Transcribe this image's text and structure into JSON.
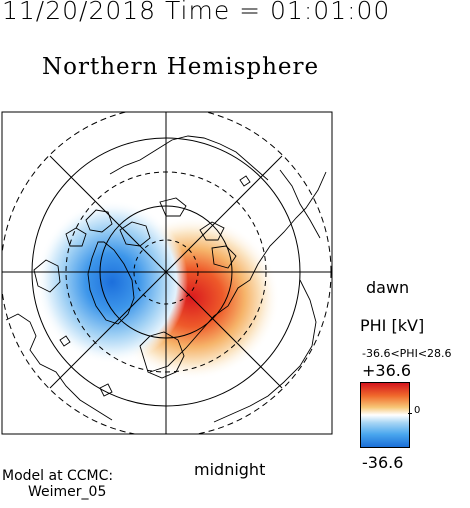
{
  "header": {
    "timestamp": "11/20/2018 Time = 01:01:00",
    "title": "Northern Hemisphere"
  },
  "map": {
    "labels": {
      "dawn": "dawn",
      "midnight": "midnight"
    }
  },
  "colorbar": {
    "label": "PHI [kV]",
    "range_text": "-36.6<PHI<28.6",
    "max_text": "+36.6",
    "min_text": "-36.6",
    "zero_text": "0",
    "colors": {
      "positive": "#d4151d",
      "negative": "#1a6fd8",
      "zero": "#ffffff"
    }
  },
  "footer": {
    "credit_line1": "Model at CCMC:",
    "credit_line2": "Weimer_05"
  }
}
